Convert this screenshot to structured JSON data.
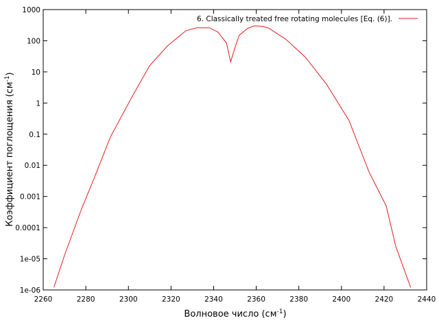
{
  "chart_data": {
    "type": "line",
    "xlabel": "Волновое число (см",
    "xlabel_sup": "-1",
    "xlabel_end": ")",
    "ylabel": "Коэффициент поглощения (см",
    "ylabel_sup": "-1",
    "ylabel_end": ")",
    "xlim": [
      2260,
      2440
    ],
    "ylim": [
      1e-06,
      1000
    ],
    "yscale": "log",
    "grid": false,
    "legend_position": "top-right",
    "x_ticks": [
      2260,
      2280,
      2300,
      2320,
      2340,
      2360,
      2380,
      2400,
      2420,
      2440
    ],
    "x_tick_labels": [
      "2260",
      "2280",
      "2300",
      "2320",
      "2340",
      "2360",
      "2380",
      "2400",
      "2420",
      "2440"
    ],
    "y_ticks": [
      1e-06,
      1e-05,
      0.0001,
      0.001,
      0.01,
      0.1,
      1,
      10,
      100,
      1000
    ],
    "y_tick_labels": [
      "1e-06",
      "1e-05",
      "0.0001",
      "0.001",
      "0.01",
      "0.1",
      "1",
      "10",
      "100",
      "1000"
    ],
    "series": [
      {
        "name": "6. Classically treated free rotating molecules [Eq. (6)].",
        "color": "#e41a1c",
        "x": [
          2265,
          2270,
          2278,
          2284,
          2291.5,
          2301.5,
          2310,
          2318.5,
          2327,
          2332,
          2338,
          2342,
          2346,
          2348,
          2350,
          2352,
          2356,
          2359,
          2363,
          2366,
          2374,
          2383,
          2393,
          2403.5,
          2413,
          2421,
          2425.5,
          2432.5
        ],
        "y": [
          1.2e-06,
          1.3e-05,
          0.0004,
          0.004,
          0.08,
          1.5,
          16,
          70,
          210,
          260,
          260,
          190,
          85,
          21,
          60,
          150,
          250,
          300,
          290,
          250,
          110,
          30,
          4,
          0.28,
          0.006,
          0.0005,
          2.5e-05,
          1.2e-06
        ]
      }
    ]
  }
}
